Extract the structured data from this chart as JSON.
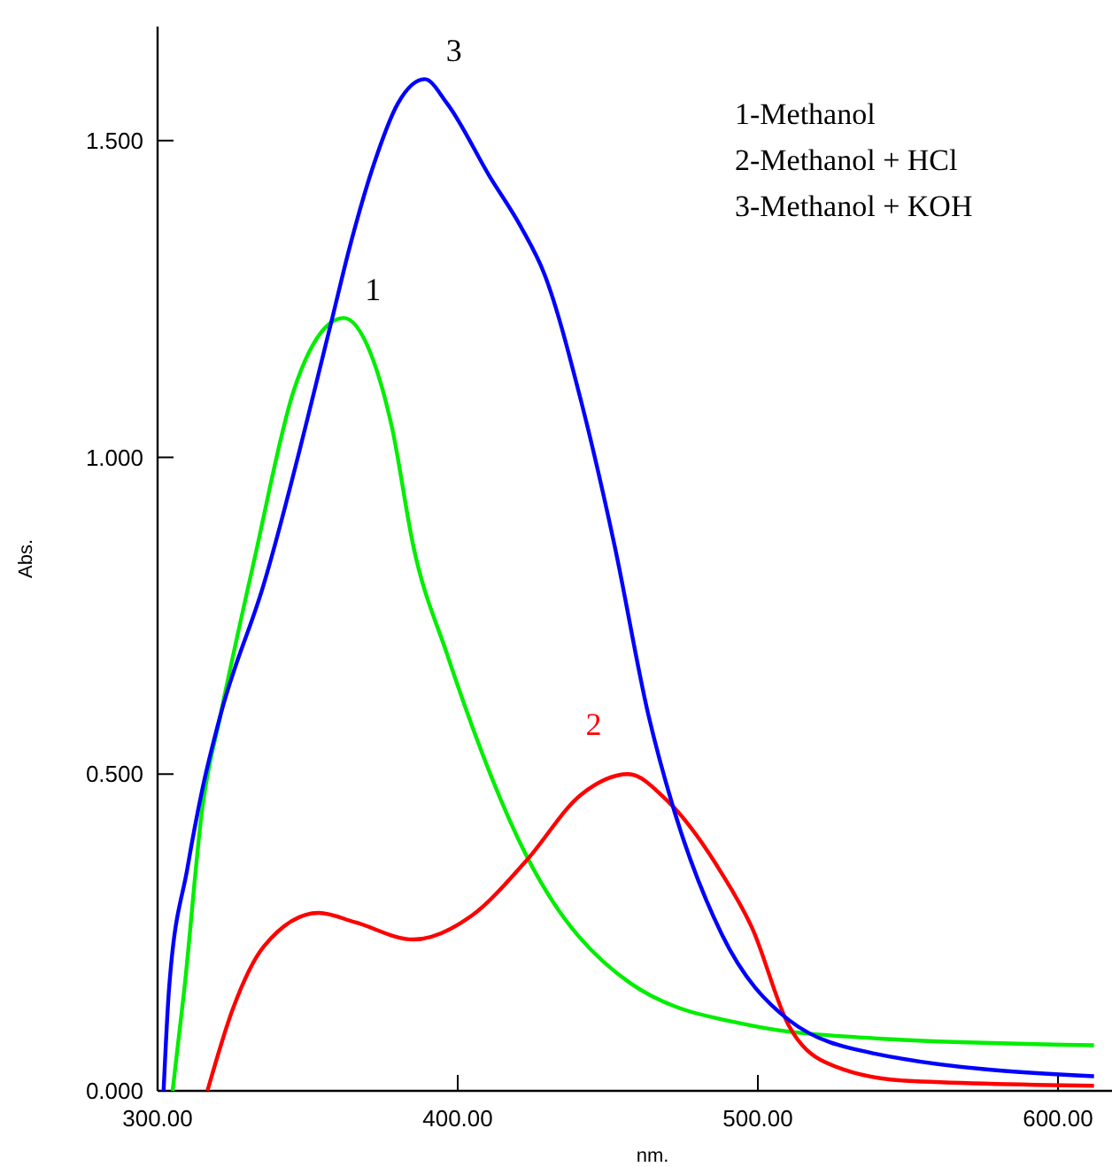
{
  "chart_data": {
    "type": "line",
    "xlabel": "nm.",
    "ylabel": "Abs.",
    "xlim": [
      300,
      618
    ],
    "ylim": [
      0,
      1.68
    ],
    "xticks": [
      {
        "value": 300,
        "label": "300.00"
      },
      {
        "value": 400,
        "label": "400.00"
      },
      {
        "value": 500,
        "label": "500.00"
      },
      {
        "value": 600,
        "label": "600.00"
      }
    ],
    "yticks": [
      {
        "value": 0,
        "label": "0.000"
      },
      {
        "value": 0.5,
        "label": "0.500"
      },
      {
        "value": 1,
        "label": "1.000"
      },
      {
        "value": 1.5,
        "label": "1.500"
      }
    ],
    "grid": false,
    "legend": false,
    "marker": "none",
    "line_style": "solid",
    "annotations": [
      "1-Methanol",
      "2-Methanol + HCl",
      "3-Methanol + KOH"
    ],
    "series": [
      {
        "name": "1",
        "color": "#00ee00",
        "x": [
          305,
          308.9,
          315,
          321,
          332.3,
          345.4,
          355.7,
          362,
          371,
          378.1,
          385.2,
          396.4,
          422.8,
          457.5,
          498.1,
          538.8,
          612
        ],
        "values": [
          0,
          0.16,
          0.45,
          0.594,
          0.84,
          1.106,
          1.204,
          1.22,
          1.164,
          1.047,
          0.86,
          0.69,
          0.372,
          0.17,
          0.103,
          0.083,
          0.072
        ]
      },
      {
        "name": "2",
        "color": "#ff0000",
        "x": [
          316.6,
          325.2,
          335.4,
          353.7,
          365.9,
          385.2,
          404.5,
          422.8,
          441.2,
          456.8,
          469.6,
          488,
          498.1,
          510.3,
          522.5,
          549,
          612
        ],
        "values": [
          0,
          0.131,
          0.228,
          0.281,
          0.266,
          0.239,
          0.276,
          0.363,
          0.468,
          0.5,
          0.459,
          0.343,
          0.257,
          0.103,
          0.045,
          0.016,
          0.008
        ]
      },
      {
        "name": "3",
        "color": "#0000ff",
        "x": [
          302,
          303.8,
          310,
          315,
          321,
          335.4,
          357.8,
          363.8,
          372,
          380.1,
          389,
          396.4,
          410.7,
          420.8,
          428.9,
          441.2,
          452.3,
          463.5,
          471.7,
          488,
          510.3,
          538.8,
          612
        ],
        "values": [
          0,
          0.16,
          0.353,
          0.478,
          0.594,
          0.8,
          1.212,
          1.328,
          1.462,
          1.559,
          1.597,
          1.559,
          1.443,
          1.366,
          1.289,
          1.087,
          0.86,
          0.594,
          0.449,
          0.247,
          0.112,
          0.059,
          0.023
        ]
      }
    ]
  }
}
